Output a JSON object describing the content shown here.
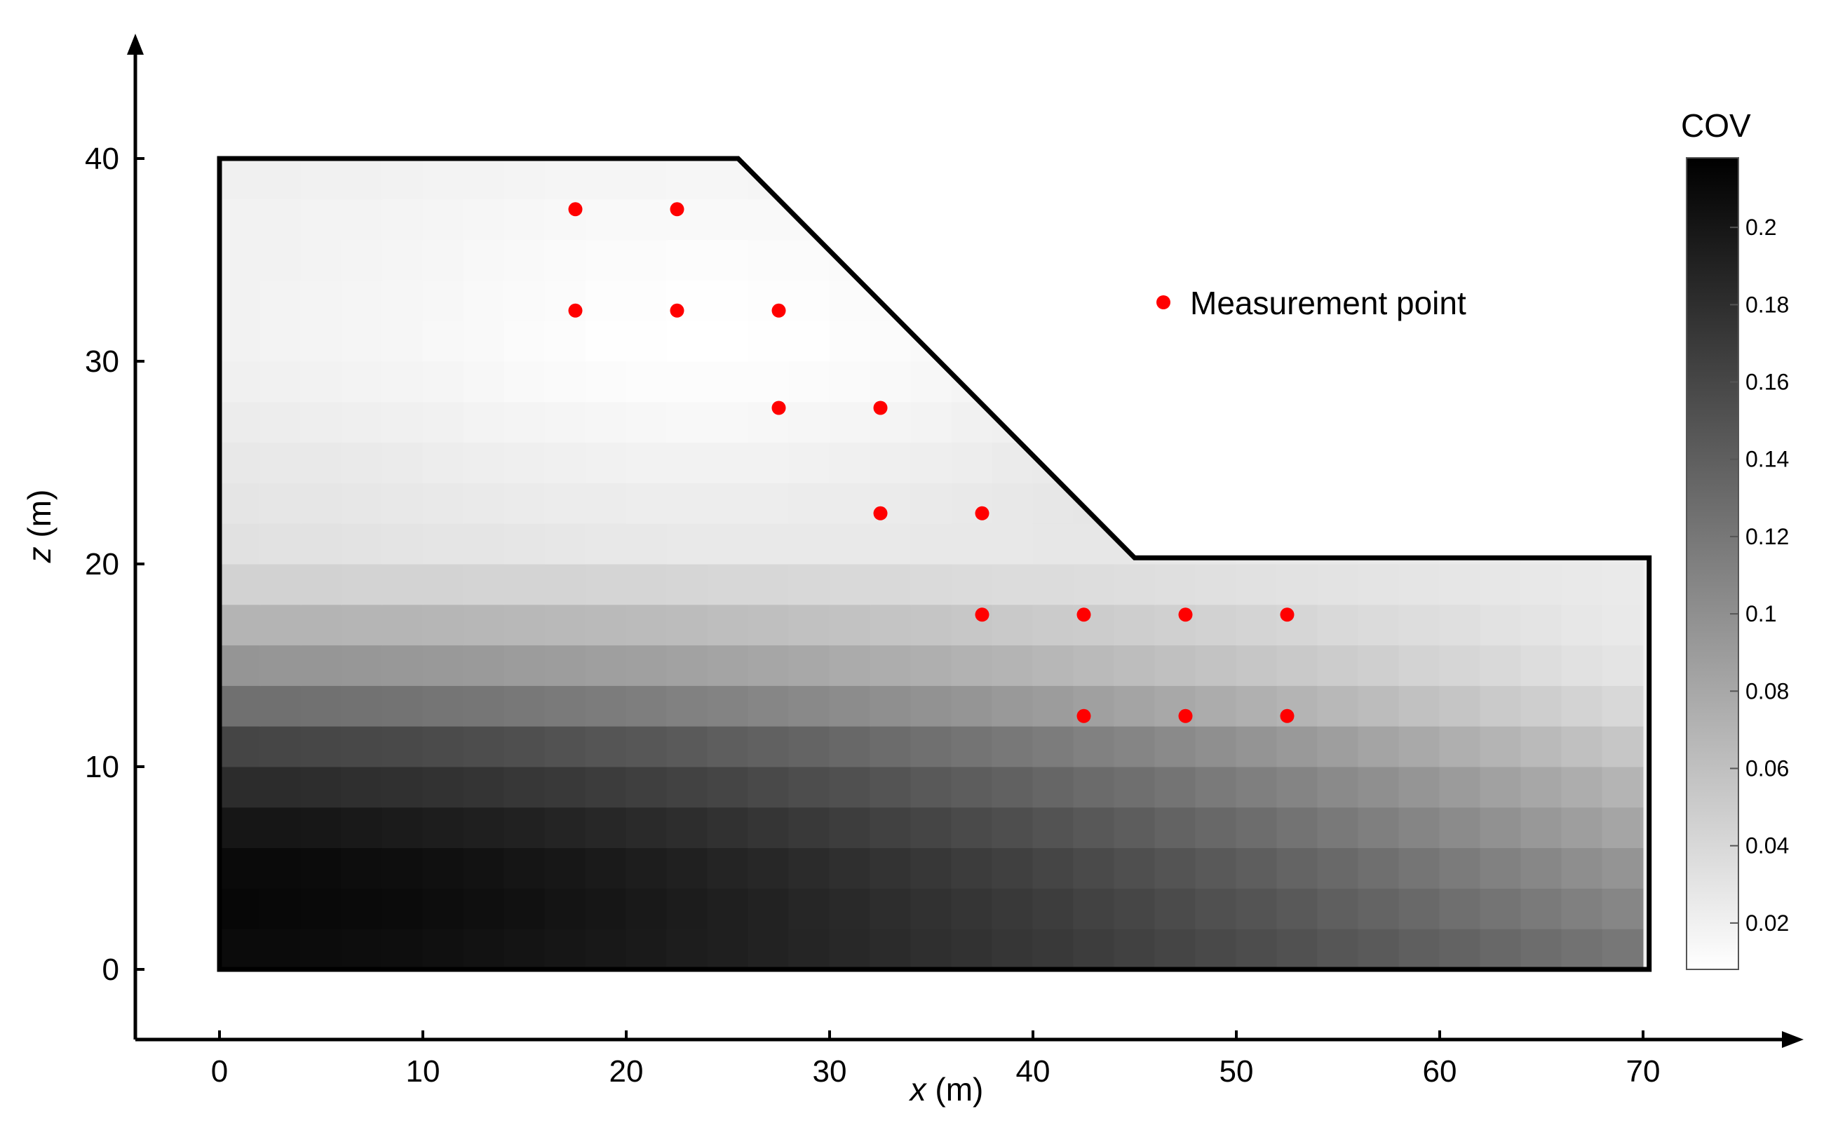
{
  "chart_data": {
    "type": "heatmap",
    "title": "",
    "xlabel": "x (m)",
    "ylabel": "z (m)",
    "xlabel_var": "x",
    "xlabel_unit": " (m)",
    "ylabel_var": "z",
    "ylabel_unit": " (m)",
    "xlim": [
      -4,
      77
    ],
    "ylim": [
      -3.5,
      46
    ],
    "x_ticks": [
      0,
      10,
      20,
      30,
      40,
      50,
      60,
      70
    ],
    "y_ticks": [
      0,
      10,
      20,
      30,
      40
    ],
    "x_tick_labels": [
      "0",
      "10",
      "20",
      "30",
      "40",
      "50",
      "60",
      "70"
    ],
    "y_tick_labels": [
      "0",
      "10",
      "20",
      "30",
      "40"
    ],
    "slope_boundary": [
      [
        0,
        0
      ],
      [
        0,
        40
      ],
      [
        25.5,
        40
      ],
      [
        45,
        20.3
      ],
      [
        70.3,
        20.3
      ],
      [
        70.3,
        0
      ]
    ],
    "colorbar": {
      "title": "COV",
      "range": [
        0.008,
        0.218
      ],
      "ticks": [
        0.02,
        0.04,
        0.06,
        0.08,
        0.1,
        0.12,
        0.14,
        0.16,
        0.18,
        0.2
      ],
      "tick_labels": [
        "0.02",
        "0.04",
        "0.06",
        "0.08",
        "0.1",
        "0.12",
        "0.14",
        "0.16",
        "0.18",
        "0.2"
      ],
      "low_color": "#ffffff",
      "high_color": "#000000"
    },
    "cov_field": {
      "x_centers": [
        1,
        3,
        5,
        7,
        9,
        11,
        13,
        15,
        17,
        19,
        21,
        23,
        25,
        27,
        29,
        31,
        33,
        35,
        37,
        39,
        41,
        43,
        45,
        47,
        49,
        51,
        53,
        55,
        57,
        59,
        61,
        63,
        65,
        67,
        69
      ],
      "z_bands": [
        1,
        3,
        5,
        7,
        9,
        11,
        13,
        15,
        17,
        19,
        21,
        23,
        25,
        27,
        29,
        31,
        33,
        35,
        37,
        39
      ],
      "left_edge_cov": [
        0.209,
        0.212,
        0.21,
        0.2,
        0.182,
        0.161,
        0.126,
        0.095,
        0.07,
        0.045,
        0.033,
        0.03,
        0.028,
        0.025,
        0.022,
        0.02,
        0.02,
        0.02,
        0.02,
        0.021
      ],
      "right_edge_cov": [
        0.12,
        0.108,
        0.096,
        0.082,
        0.07,
        0.055,
        0.04,
        0.03,
        0.026,
        0.025,
        0.024
      ]
    },
    "series": [
      {
        "name": "Measurement point",
        "points": [
          [
            17.5,
            37.5
          ],
          [
            22.5,
            37.5
          ],
          [
            17.5,
            32.5
          ],
          [
            22.5,
            32.5
          ],
          [
            27.5,
            32.5
          ],
          [
            27.5,
            27.7
          ],
          [
            32.5,
            27.7
          ],
          [
            32.5,
            22.5
          ],
          [
            37.5,
            22.5
          ],
          [
            37.5,
            17.5
          ],
          [
            42.5,
            17.5
          ],
          [
            47.5,
            17.5
          ],
          [
            52.5,
            17.5
          ],
          [
            42.5,
            12.5
          ],
          [
            47.5,
            12.5
          ],
          [
            52.5,
            12.5
          ]
        ]
      }
    ],
    "marker_color": "#ff0000",
    "legend_placement": "upper-right inside plot",
    "grid": false
  }
}
